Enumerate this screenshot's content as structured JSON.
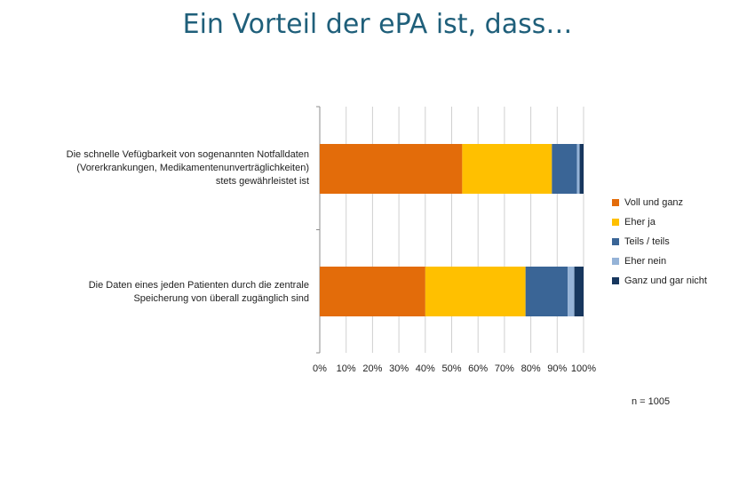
{
  "title": "Ein Vorteil der ePA ist, dass…",
  "note": "n = 1005",
  "chart_data": {
    "type": "bar",
    "orientation": "horizontal",
    "stacked": "percent",
    "categories": [
      "Die schnelle Vefügbarkeit von sogenannten Notfalldaten (Vorerkrankungen, Medikamentenunverträglichkeiten) stets gewährleistet ist",
      "Die Daten eines jeden Patienten durch die zentrale Speicherung von überall zugänglich sind"
    ],
    "category_lines": [
      [
        "Die schnelle Vefügbarkeit von sogenannten Notfalldaten",
        "(Vorerkrankungen, Medikamentenunverträglichkeiten)",
        "stets gewährleistet ist"
      ],
      [
        "Die Daten eines jeden Patienten durch die zentrale",
        "Speicherung von überall zugänglich sind"
      ]
    ],
    "series": [
      {
        "name": "Voll und ganz",
        "color": "#e36c0a",
        "values": [
          54,
          40
        ]
      },
      {
        "name": "Eher ja",
        "color": "#ffc000",
        "values": [
          34,
          38
        ]
      },
      {
        "name": "Teils / teils",
        "color": "#3a6596",
        "values": [
          9.5,
          16
        ]
      },
      {
        "name": "Eher nein",
        "color": "#95b3d7",
        "values": [
          1,
          2.5
        ]
      },
      {
        "name": "Ganz und gar nicht",
        "color": "#17375e",
        "values": [
          1.5,
          3.5
        ]
      }
    ],
    "xlim": [
      0,
      100
    ],
    "x_ticks": [
      "0%",
      "10%",
      "20%",
      "30%",
      "40%",
      "50%",
      "60%",
      "70%",
      "80%",
      "90%",
      "100%"
    ],
    "grid": true,
    "legend_position": "right"
  }
}
